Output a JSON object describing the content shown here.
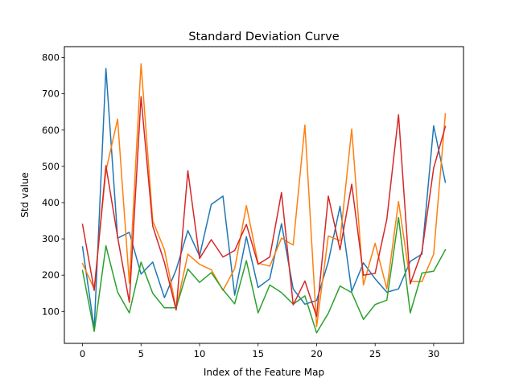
{
  "chart_data": {
    "type": "line",
    "title": "Standard Deviation Curve",
    "xlabel": "Index of the Feature Map",
    "ylabel": "Std value",
    "xlim": [
      -1.55,
      32.55
    ],
    "ylim": [
      12,
      830
    ],
    "xticks": [
      0,
      5,
      10,
      15,
      20,
      25,
      30
    ],
    "yticks": [
      100,
      200,
      300,
      400,
      500,
      600,
      700,
      800
    ],
    "grid": false,
    "legend": "none",
    "x": [
      0,
      1,
      2,
      3,
      4,
      5,
      6,
      7,
      8,
      9,
      10,
      11,
      12,
      13,
      14,
      15,
      16,
      17,
      18,
      19,
      20,
      21,
      22,
      23,
      24,
      25,
      26,
      27,
      28,
      29,
      30,
      31
    ],
    "series": [
      {
        "color": "#1f77b4",
        "values": [
          278,
          52,
          770,
          302,
          318,
          203,
          236,
          138,
          215,
          323,
          253,
          395,
          418,
          145,
          306,
          166,
          190,
          342,
          162,
          120,
          130,
          237,
          390,
          155,
          234,
          190,
          153,
          162,
          238,
          258,
          612,
          456
        ]
      },
      {
        "color": "#ff7f0e",
        "values": [
          232,
          162,
          488,
          630,
          178,
          783,
          350,
          270,
          108,
          258,
          230,
          215,
          158,
          218,
          392,
          233,
          225,
          302,
          283,
          614,
          58,
          308,
          295,
          603,
          173,
          288,
          162,
          403,
          183,
          182,
          258,
          645
        ]
      },
      {
        "color": "#2ca02c",
        "values": [
          213,
          45,
          281,
          153,
          96,
          236,
          150,
          110,
          110,
          217,
          180,
          207,
          160,
          121,
          240,
          96,
          173,
          152,
          120,
          143,
          41,
          95,
          170,
          152,
          78,
          119,
          131,
          359,
          96,
          206,
          211,
          270
        ]
      },
      {
        "color": "#d62728",
        "values": [
          340,
          158,
          502,
          305,
          125,
          692,
          335,
          235,
          104,
          488,
          246,
          298,
          250,
          268,
          340,
          230,
          250,
          428,
          118,
          184,
          86,
          418,
          270,
          451,
          200,
          205,
          354,
          642,
          176,
          265,
          495,
          610
        ]
      }
    ]
  }
}
